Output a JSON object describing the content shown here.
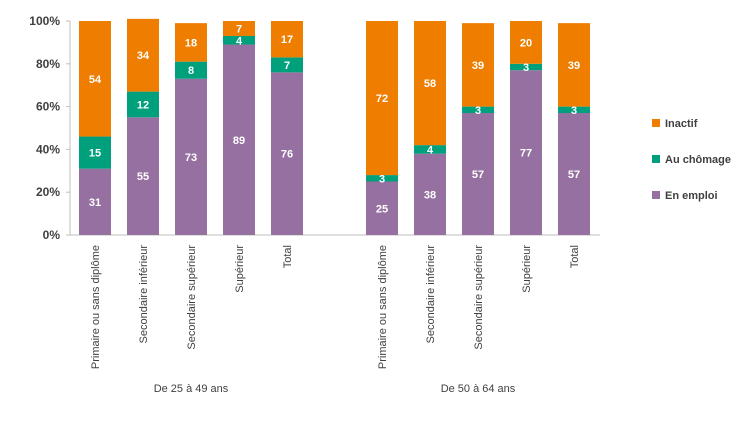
{
  "chart_data": {
    "type": "bar",
    "stacked": true,
    "ylim": [
      0,
      100
    ],
    "y_ticks": [
      "0%",
      "20%",
      "40%",
      "60%",
      "80%",
      "100%"
    ],
    "grid": false,
    "legend_position": "right",
    "groups": [
      {
        "label": "De 25 à 49 ans",
        "categories": [
          "Primaire ou sans diplôme",
          "Secondaire inférieur",
          "Secondaire supérieur",
          "Supérieur",
          "Total"
        ]
      },
      {
        "label": "De 50 à 64 ans",
        "categories": [
          "Primaire ou sans diplôme",
          "Secondaire inférieur",
          "Secondaire supérieur",
          "Supérieur",
          "Total"
        ]
      }
    ],
    "series": [
      {
        "name": "En emploi",
        "color": "#9670a0",
        "values": [
          31,
          55,
          73,
          89,
          76,
          25,
          38,
          57,
          77,
          57
        ]
      },
      {
        "name": "Au chômage",
        "color": "#00a07c",
        "values": [
          15,
          12,
          8,
          4,
          7,
          3,
          4,
          3,
          3,
          3
        ]
      },
      {
        "name": "Inactif",
        "color": "#ef7d00",
        "values": [
          54,
          34,
          18,
          7,
          17,
          72,
          58,
          39,
          20,
          39
        ]
      }
    ]
  }
}
